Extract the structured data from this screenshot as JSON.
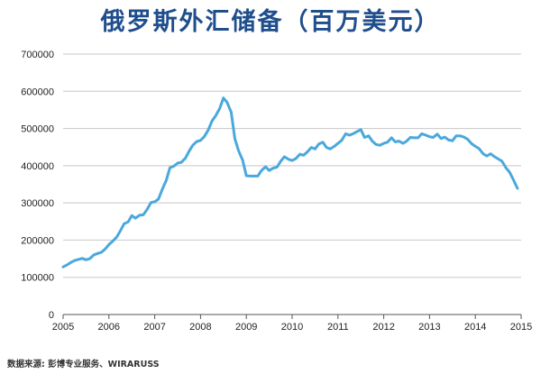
{
  "chart_data": {
    "type": "line",
    "title": "俄罗斯外汇储备（百万美元）",
    "xlabel": "",
    "ylabel": "",
    "xlim": [
      2005,
      2015
    ],
    "ylim": [
      0,
      700000
    ],
    "x_ticks": [
      "2005",
      "2006",
      "2007",
      "2008",
      "2009",
      "2010",
      "2011",
      "2012",
      "2013",
      "2014",
      "2015"
    ],
    "y_ticks": [
      "0",
      "100000",
      "200000",
      "300000",
      "400000",
      "500000",
      "600000",
      "700000"
    ],
    "grid": "horizontal",
    "line_color": "#4aa8dd",
    "series": [
      {
        "x": [
          2005.0,
          2005.08,
          2005.17,
          2005.25,
          2005.33,
          2005.42,
          2005.5,
          2005.58,
          2005.67,
          2005.75,
          2005.83,
          2005.92,
          2006.0,
          2006.08,
          2006.17,
          2006.25,
          2006.33,
          2006.42,
          2006.5,
          2006.58,
          2006.67,
          2006.75,
          2006.83,
          2006.92,
          2007.0,
          2007.08,
          2007.17,
          2007.25,
          2007.33,
          2007.42,
          2007.5,
          2007.58,
          2007.67,
          2007.75,
          2007.83,
          2007.92,
          2008.0,
          2008.08,
          2008.17,
          2008.25,
          2008.33,
          2008.42,
          2008.5,
          2008.58,
          2008.67,
          2008.75,
          2008.83,
          2008.92,
          2009.0,
          2009.08,
          2009.17,
          2009.25,
          2009.33,
          2009.42,
          2009.5,
          2009.58,
          2009.67,
          2009.75,
          2009.83,
          2009.92,
          2010.0,
          2010.08,
          2010.17,
          2010.25,
          2010.33,
          2010.42,
          2010.5,
          2010.58,
          2010.67,
          2010.75,
          2010.83,
          2010.92,
          2011.0,
          2011.08,
          2011.17,
          2011.25,
          2011.33,
          2011.42,
          2011.5,
          2011.58,
          2011.67,
          2011.75,
          2011.83,
          2011.92,
          2012.0,
          2012.08,
          2012.17,
          2012.25,
          2012.33,
          2012.42,
          2012.5,
          2012.58,
          2012.67,
          2012.75,
          2012.83,
          2012.92,
          2013.0,
          2013.08,
          2013.17,
          2013.25,
          2013.33,
          2013.42,
          2013.5,
          2013.58,
          2013.67,
          2013.75,
          2013.83,
          2013.92,
          2014.0,
          2014.08,
          2014.17,
          2014.25,
          2014.33,
          2014.42,
          2014.5,
          2014.58,
          2014.67,
          2014.75,
          2014.83,
          2014.92
        ],
        "values": [
          128000,
          133000,
          140000,
          145000,
          148000,
          151000,
          147000,
          150000,
          160000,
          164000,
          167000,
          176000,
          188000,
          197000,
          208000,
          225000,
          244000,
          249000,
          266000,
          259000,
          267000,
          268000,
          282000,
          301000,
          303000,
          310000,
          338000,
          360000,
          394000,
          399000,
          407000,
          409000,
          420000,
          439000,
          455000,
          465000,
          468000,
          478000,
          496000,
          520000,
          534000,
          554000,
          582000,
          570000,
          544000,
          472000,
          440000,
          415000,
          373000,
          372000,
          372000,
          372000,
          387000,
          397000,
          387000,
          393000,
          396000,
          412000,
          424000,
          417000,
          414000,
          419000,
          431000,
          428000,
          437000,
          449000,
          445000,
          458000,
          463000,
          449000,
          445000,
          452000,
          460000,
          468000,
          486000,
          482000,
          486000,
          492000,
          497000,
          476000,
          480000,
          466000,
          457000,
          455000,
          460000,
          463000,
          475000,
          464000,
          466000,
          460000,
          466000,
          476000,
          475000,
          475000,
          486000,
          482000,
          478000,
          476000,
          485000,
          473000,
          477000,
          469000,
          467000,
          480000,
          480000,
          477000,
          471000,
          459000,
          452000,
          446000,
          432000,
          426000,
          432000,
          424000,
          418000,
          412000,
          394000,
          382000,
          362000,
          339000
        ]
      }
    ]
  },
  "source_note": "数据来源: 彭博专业服务、WIRARUSS"
}
